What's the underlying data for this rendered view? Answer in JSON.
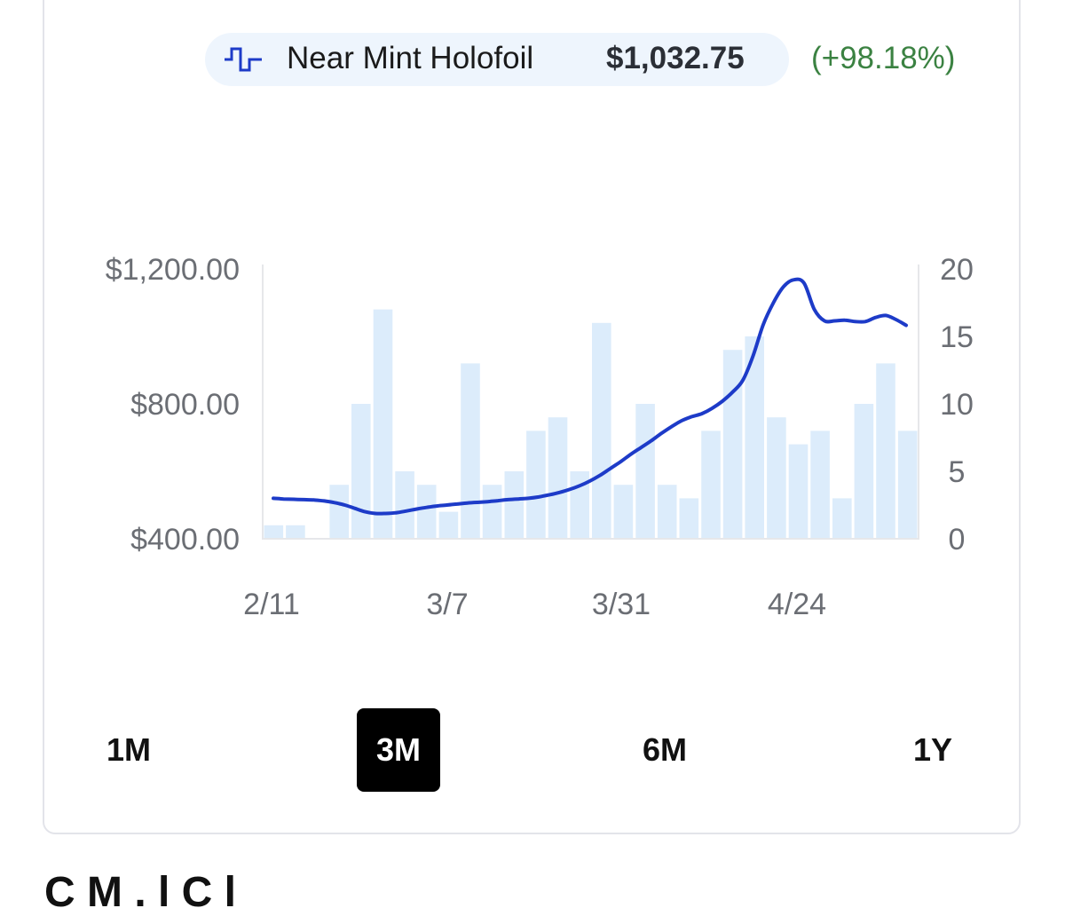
{
  "legend": {
    "series_name": "Near Mint Holofoil",
    "price": "$1,032.75",
    "change": "(+98.18%)",
    "icon": "step-line-icon",
    "line_color": "#1d3bc8",
    "bar_color": "#dcecfb"
  },
  "chart_data": {
    "type": "bar",
    "x_ticks": [
      "2/11",
      "3/7",
      "3/31",
      "4/24"
    ],
    "y_left": {
      "ticks": [
        "$1,200.00",
        "$800.00",
        "$400.00"
      ],
      "values": [
        1200,
        800,
        400
      ],
      "range": [
        400,
        1200
      ]
    },
    "y_right": {
      "ticks": [
        "20",
        "15",
        "10",
        "5",
        "0"
      ],
      "values": [
        20,
        15,
        10,
        5,
        0
      ],
      "range": [
        0,
        20
      ]
    },
    "bars": [
      1,
      1,
      0,
      4,
      10,
      17,
      5,
      4,
      2,
      13,
      4,
      5,
      8,
      9,
      5,
      16,
      4,
      10,
      4,
      3,
      8,
      14,
      15,
      9,
      7,
      8,
      3,
      10,
      13,
      8
    ],
    "price_line": [
      520,
      518,
      517,
      516,
      515,
      512,
      507,
      500,
      490,
      480,
      475,
      475,
      477,
      482,
      488,
      493,
      497,
      500,
      503,
      506,
      508,
      510,
      513,
      516,
      518,
      520,
      524,
      530,
      537,
      546,
      557,
      571,
      588,
      608,
      628,
      650,
      670,
      690,
      712,
      732,
      750,
      762,
      771,
      787,
      808,
      835,
      870,
      942,
      1035,
      1100,
      1148,
      1168,
      1158,
      1080,
      1046,
      1046,
      1048,
      1044,
      1044,
      1056,
      1062,
      1050,
      1033
    ],
    "legend_position": "top-right",
    "grid": false
  },
  "ranges": [
    {
      "label": "1M",
      "active": false
    },
    {
      "label": "3M",
      "active": true
    },
    {
      "label": "6M",
      "active": false
    },
    {
      "label": "1Y",
      "active": false
    }
  ],
  "footer": {
    "heading_peek": "C  M  .  l  C    l"
  }
}
